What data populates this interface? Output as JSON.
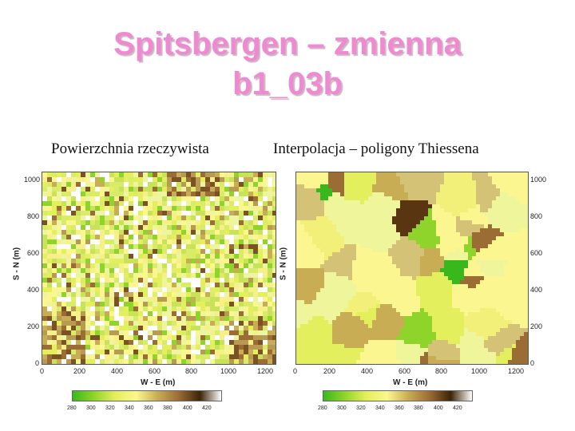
{
  "title": {
    "line1": "Spitsbergen – zmienna",
    "line2": "b1_03b"
  },
  "panels": [
    {
      "subtitle": "Powierzchnia rzeczywista",
      "y_label": "S - N (m)",
      "x_label": "W - E (m)",
      "y_ticks": [
        "1000",
        "800",
        "600",
        "400",
        "200",
        "0"
      ],
      "x_ticks": [
        "0",
        "200",
        "400",
        "600",
        "800",
        "1000",
        "1200"
      ],
      "colorbar_ticks": [
        "280",
        "300",
        "320",
        "340",
        "360",
        "380",
        "400",
        "420"
      ]
    },
    {
      "subtitle": "Interpolacja – poligony Thiessena",
      "y_label": "S - N (m)",
      "x_label": "W - E (m)",
      "y_ticks": [
        "1000",
        "800",
        "600",
        "400",
        "200",
        "0"
      ],
      "x_ticks": [
        "0",
        "200",
        "400",
        "600",
        "800",
        "1000",
        "1200"
      ],
      "colorbar_ticks": [
        "280",
        "300",
        "320",
        "340",
        "360",
        "380",
        "400",
        "420"
      ]
    }
  ],
  "colors": {
    "title": "#f08ad0",
    "scale": [
      "#39b81e",
      "#8fd42a",
      "#e3ef5c",
      "#fbf68f",
      "#c8ad55",
      "#9b6d34",
      "#3e2408",
      "#ffffff"
    ]
  }
}
